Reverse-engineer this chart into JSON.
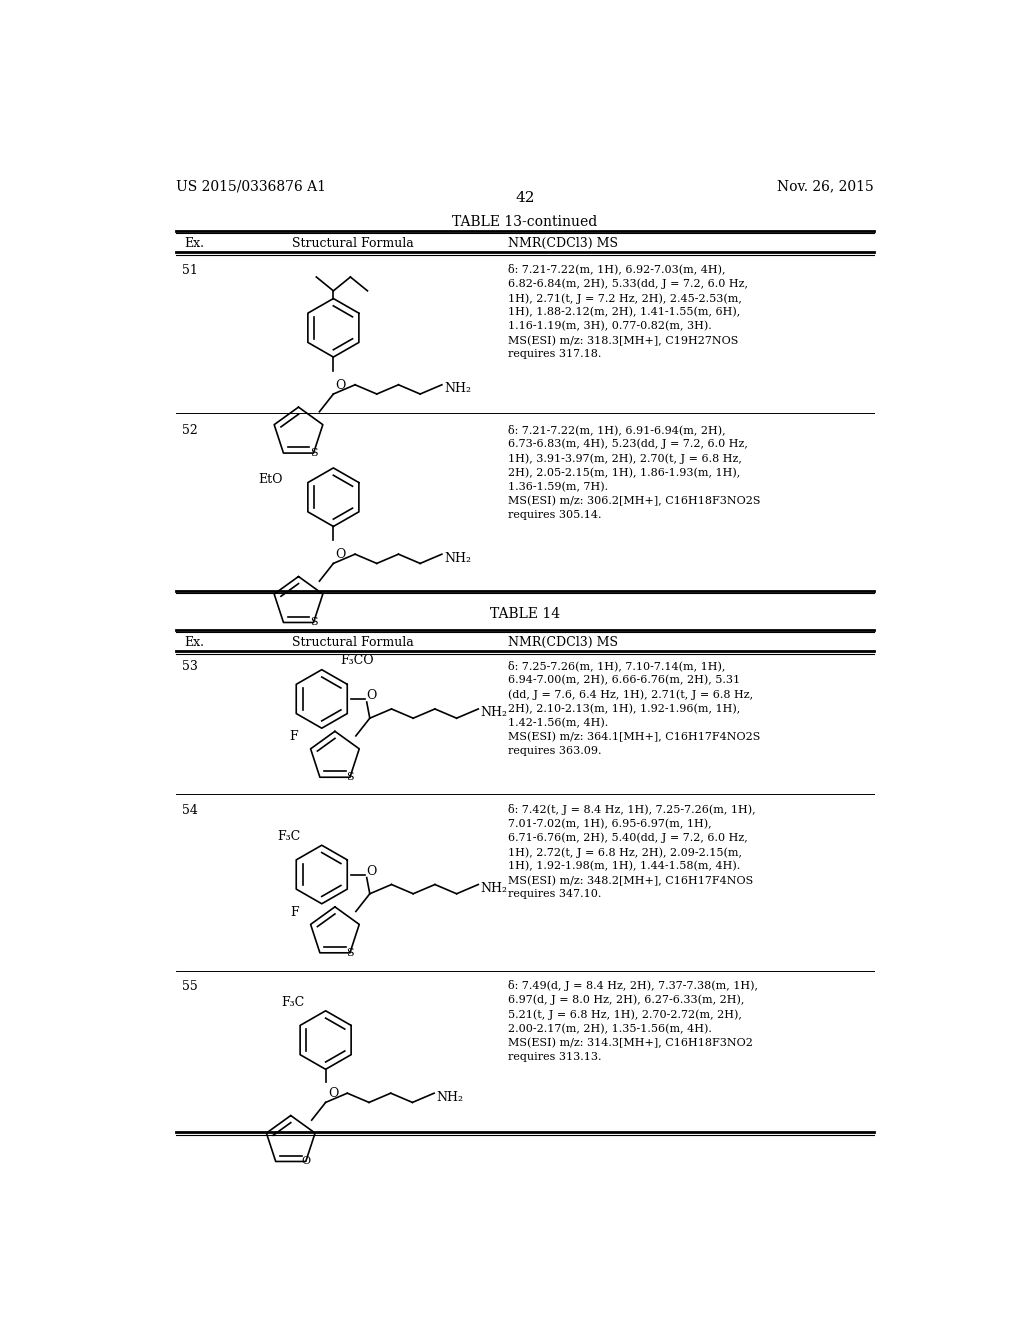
{
  "background_color": "#ffffff",
  "page_number": "42",
  "left_header": "US 2015/0336876 A1",
  "right_header": "Nov. 26, 2015",
  "table13_title": "TABLE 13-continued",
  "table14_title": "TABLE 14",
  "col_headers": [
    "Ex.",
    "Structural Formula",
    "NMR(CDCl3) MS"
  ],
  "entries": [
    {
      "ex": "51",
      "nmr": "δ: 7.21-7.22(m, 1H), 6.92-7.03(m, 4H),\n6.82-6.84(m, 2H), 5.33(dd, J = 7.2, 6.0 Hz,\n1H), 2.71(t, J = 7.2 Hz, 2H), 2.45-2.53(m,\n1H), 1.88-2.12(m, 2H), 1.41-1.55(m, 6H),\n1.16-1.19(m, 3H), 0.77-0.82(m, 3H).\nMS(ESI) m/z: 318.3[MH+], C19H27NOS\nrequires 317.18."
    },
    {
      "ex": "52",
      "nmr": "δ: 7.21-7.22(m, 1H), 6.91-6.94(m, 2H),\n6.73-6.83(m, 4H), 5.23(dd, J = 7.2, 6.0 Hz,\n1H), 3.91-3.97(m, 2H), 2.70(t, J = 6.8 Hz,\n2H), 2.05-2.15(m, 1H), 1.86-1.93(m, 1H),\n1.36-1.59(m, 7H).\nMS(ESI) m/z: 306.2[MH+], C16H18F3NO2S\nrequires 305.14."
    },
    {
      "ex": "53",
      "nmr": "δ: 7.25-7.26(m, 1H), 7.10-7.14(m, 1H),\n6.94-7.00(m, 2H), 6.66-6.76(m, 2H), 5.31\n(dd, J = 7.6, 6.4 Hz, 1H), 2.71(t, J = 6.8 Hz,\n2H), 2.10-2.13(m, 1H), 1.92-1.96(m, 1H),\n1.42-1.56(m, 4H).\nMS(ESI) m/z: 364.1[MH+], C16H17F4NO2S\nrequires 363.09."
    },
    {
      "ex": "54",
      "nmr": "δ: 7.42(t, J = 8.4 Hz, 1H), 7.25-7.26(m, 1H),\n7.01-7.02(m, 1H), 6.95-6.97(m, 1H),\n6.71-6.76(m, 2H), 5.40(dd, J = 7.2, 6.0 Hz,\n1H), 2.72(t, J = 6.8 Hz, 2H), 2.09-2.15(m,\n1H), 1.92-1.98(m, 1H), 1.44-1.58(m, 4H).\nMS(ESI) m/z: 348.2[MH+], C16H17F4NOS\nrequires 347.10."
    },
    {
      "ex": "55",
      "nmr": "δ: 7.49(d, J = 8.4 Hz, 2H), 7.37-7.38(m, 1H),\n6.97(d, J = 8.0 Hz, 2H), 6.27-6.33(m, 2H),\n5.21(t, J = 6.8 Hz, 1H), 2.70-2.72(m, 2H),\n2.00-2.17(m, 2H), 1.35-1.56(m, 4H).\nMS(ESI) m/z: 314.3[MH+], C16H18F3NO2\nrequires 313.13."
    }
  ]
}
